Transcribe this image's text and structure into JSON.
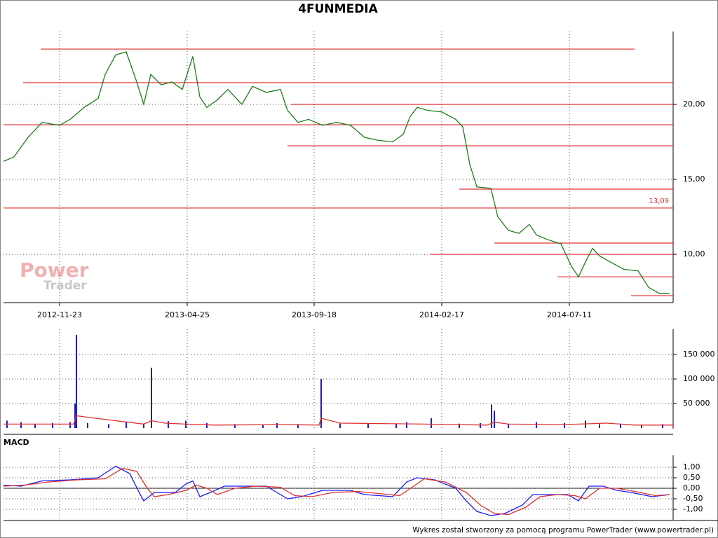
{
  "title": "4FUNMEDIA",
  "watermark": [
    "Power",
    "Trader"
  ],
  "footer": "Wykres został stworzony za pomocą programu PowerTrader (www.powertrader.pl)",
  "chart_data": [
    {
      "type": "line",
      "xlim": [
        0,
        955
      ],
      "xticks": [
        {
          "value": 80,
          "label": "2012-11-23"
        },
        {
          "value": 262,
          "label": "2013-04-25"
        },
        {
          "value": 443,
          "label": "2013-09-18"
        },
        {
          "value": 625,
          "label": "2014-02-17"
        },
        {
          "value": 807,
          "label": "2014-07-11"
        }
      ],
      "ylim": [
        6.78,
        24.86
      ],
      "yticks": [
        {
          "value": 10,
          "label": "10,00"
        },
        {
          "value": 15,
          "label": "15,00"
        },
        {
          "value": 20,
          "label": "20,00"
        }
      ],
      "grid": true,
      "series": [
        {
          "color": "#1f7a1f",
          "x": [
            0,
            15,
            35,
            55,
            80,
            95,
            115,
            135,
            145,
            160,
            175,
            190,
            200,
            210,
            225,
            240,
            255,
            270,
            280,
            290,
            305,
            320,
            340,
            355,
            375,
            395,
            405,
            420,
            435,
            455,
            475,
            495,
            515,
            535,
            555,
            570,
            580,
            590,
            605,
            625,
            645,
            655,
            665,
            675,
            695,
            705,
            720,
            735,
            750,
            760,
            775,
            795,
            810,
            820,
            830,
            840,
            850,
            865,
            885,
            905,
            920,
            935,
            950
          ],
          "values": [
            16.2,
            16.5,
            17.8,
            18.8,
            18.6,
            19.0,
            19.8,
            20.4,
            22.0,
            23.3,
            23.5,
            21.5,
            20.0,
            22.0,
            21.3,
            21.5,
            21.0,
            23.2,
            20.5,
            19.8,
            20.3,
            21.0,
            20.0,
            21.2,
            20.8,
            21.0,
            19.6,
            18.8,
            19.0,
            18.6,
            18.8,
            18.6,
            17.8,
            17.6,
            17.5,
            18.0,
            19.2,
            19.8,
            19.6,
            19.5,
            19.0,
            18.5,
            16.0,
            14.5,
            14.4,
            12.5,
            11.6,
            11.4,
            12.0,
            11.3,
            11.0,
            10.7,
            9.2,
            8.5,
            9.5,
            10.4,
            9.9,
            9.5,
            9.0,
            8.9,
            7.8,
            7.4,
            7.4
          ]
        }
      ],
      "level_color": "#e03030",
      "levels": [
        {
          "value": 23.69,
          "x0": 53,
          "x1": 900
        },
        {
          "value": 21.45,
          "x0": 28,
          "x1": 955
        },
        {
          "value": 20.0,
          "x0": 410,
          "x1": 955
        },
        {
          "value": 18.64,
          "x0": 0,
          "x1": 955
        },
        {
          "value": 17.24,
          "x0": 405,
          "x1": 955
        },
        {
          "value": 14.35,
          "x0": 650,
          "x1": 955
        },
        {
          "value": 13.09,
          "x0": 0,
          "x1": 955,
          "label": "13,09"
        },
        {
          "value": 10.75,
          "x0": 700,
          "x1": 955
        },
        {
          "value": 10.0,
          "x0": 608,
          "x1": 955
        },
        {
          "value": 8.5,
          "x0": 790,
          "x1": 955
        },
        {
          "value": 7.24,
          "x0": 895,
          "x1": 955
        }
      ]
    },
    {
      "type": "bar",
      "xlim": [
        0,
        955
      ],
      "ylim": [
        0,
        201400
      ],
      "yticks": [
        {
          "value": 50000,
          "label": "50 000"
        },
        {
          "value": 100000,
          "label": "100 000"
        },
        {
          "value": 150000,
          "label": "150 000"
        }
      ],
      "grid": true,
      "series": [
        {
          "color": "#2020c0",
          "x": [
            5,
            25,
            45,
            70,
            95,
            102,
            104,
            120,
            150,
            175,
            200,
            211,
            235,
            260,
            290,
            330,
            370,
            390,
            420,
            453,
            480,
            520,
            560,
            575,
            610,
            650,
            680,
            696,
            700,
            720,
            760,
            800,
            830,
            850,
            880,
            910,
            940
          ],
          "values": [
            15000,
            12000,
            8000,
            10000,
            12000,
            50000,
            190000,
            10000,
            8000,
            12000,
            9000,
            123000,
            14000,
            15000,
            10000,
            8000,
            6000,
            10000,
            8000,
            100000,
            9000,
            10000,
            8000,
            12000,
            20000,
            9000,
            10000,
            48000,
            35000,
            8000,
            12000,
            10000,
            15000,
            8000,
            9000,
            7000,
            8000
          ]
        },
        {
          "color": "#e03030",
          "x": [
            0,
            100,
            104,
            120,
            200,
            211,
            230,
            260,
            300,
            400,
            450,
            453,
            480,
            600,
            690,
            700,
            720,
            800,
            860,
            900,
            955
          ],
          "values": [
            8000,
            8000,
            25000,
            22000,
            8000,
            15000,
            10000,
            8000,
            6000,
            7000,
            6000,
            20000,
            10000,
            8000,
            6000,
            12000,
            8000,
            7000,
            10000,
            6000,
            6000
          ]
        }
      ]
    },
    {
      "type": "line",
      "title": "MACD",
      "xlim": [
        0,
        955
      ],
      "ylim": [
        -1.5,
        1.9
      ],
      "yticks": [
        {
          "value": 1,
          "label": "1,00"
        },
        {
          "value": 0.5,
          "label": "0,50"
        },
        {
          "value": 0,
          "label": "0,00"
        },
        {
          "value": -0.5,
          "label": "-0,50"
        },
        {
          "value": -1,
          "label": "-1,00"
        }
      ],
      "grid": true,
      "series": [
        {
          "color": "#1a1aff",
          "x": [
            0,
            25,
            55,
            95,
            135,
            160,
            180,
            195,
            200,
            215,
            245,
            260,
            270,
            280,
            295,
            315,
            345,
            375,
            405,
            425,
            455,
            495,
            515,
            555,
            575,
            590,
            615,
            645,
            660,
            675,
            695,
            715,
            740,
            755,
            775,
            805,
            820,
            835,
            855,
            875,
            895,
            925,
            950
          ],
          "values": [
            0.15,
            0.1,
            0.35,
            0.4,
            0.5,
            1.05,
            0.7,
            -0.3,
            -0.6,
            -0.2,
            -0.2,
            0.2,
            0.35,
            -0.4,
            -0.2,
            0.1,
            0.1,
            0.1,
            -0.5,
            -0.4,
            -0.1,
            -0.1,
            -0.3,
            -0.4,
            0.3,
            0.5,
            0.4,
            0.0,
            -0.6,
            -1.1,
            -1.3,
            -1.2,
            -0.8,
            -0.3,
            -0.3,
            -0.3,
            -0.6,
            0.1,
            0.1,
            -0.1,
            -0.2,
            -0.4,
            -0.3
          ]
        },
        {
          "color": "#e03030",
          "x": [
            0,
            30,
            65,
            105,
            145,
            170,
            190,
            205,
            215,
            235,
            260,
            275,
            290,
            305,
            330,
            360,
            395,
            415,
            440,
            470,
            505,
            535,
            565,
            585,
            600,
            630,
            660,
            680,
            700,
            720,
            745,
            765,
            790,
            815,
            830,
            850,
            875,
            900,
            930,
            950
          ],
          "values": [
            0.1,
            0.15,
            0.3,
            0.4,
            0.45,
            0.95,
            0.8,
            0.0,
            -0.4,
            -0.3,
            -0.1,
            0.15,
            0.0,
            -0.3,
            0.0,
            0.1,
            0.05,
            -0.35,
            -0.4,
            -0.2,
            -0.15,
            -0.25,
            -0.35,
            0.1,
            0.45,
            0.3,
            -0.2,
            -0.8,
            -1.2,
            -1.25,
            -0.9,
            -0.4,
            -0.3,
            -0.35,
            -0.5,
            0.0,
            0.0,
            -0.15,
            -0.35,
            -0.3
          ]
        }
      ]
    }
  ]
}
